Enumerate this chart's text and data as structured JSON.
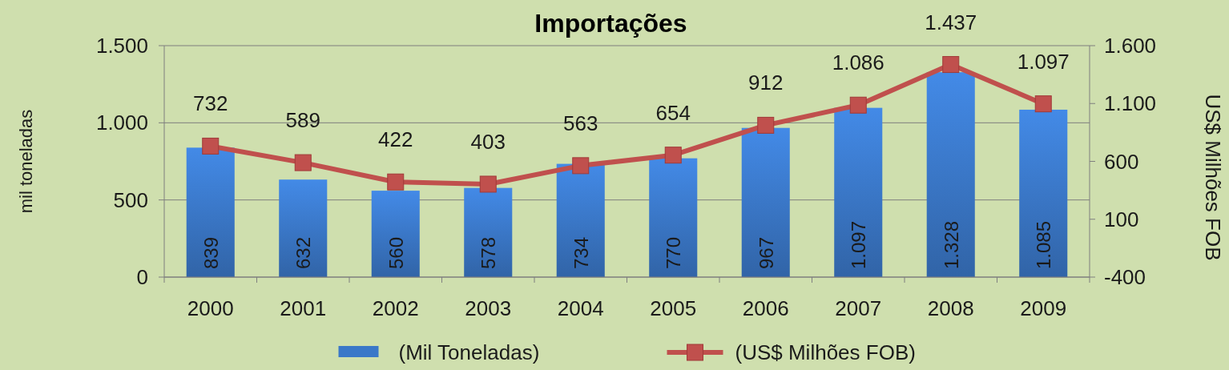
{
  "chart_data": {
    "type": "bar",
    "title": "Importações",
    "ylabel": "mil toneladas",
    "y2label": "US$ Milhões FOB",
    "categories": [
      "2000",
      "2001",
      "2002",
      "2003",
      "2004",
      "2005",
      "2006",
      "2007",
      "2008",
      "2009"
    ],
    "series": [
      {
        "name": "(Mil Toneladas)",
        "color": "#3a78c8",
        "values": [
          839,
          632,
          560,
          578,
          734,
          770,
          967,
          1097,
          1328,
          1085
        ],
        "value_labels": [
          "839",
          "632",
          "560",
          "578",
          "734",
          "770",
          "967",
          "1.097",
          "1.328",
          "1.085"
        ]
      },
      {
        "name": "(US$ Milhões FOB)",
        "type": "line",
        "axis": "y2",
        "color": "#c0504d",
        "marker": "square",
        "values": [
          732,
          589,
          422,
          403,
          563,
          654,
          912,
          1086,
          1437,
          1097
        ],
        "value_labels": [
          "732",
          "589",
          "422",
          "403",
          "563",
          "654",
          "912",
          "1.086",
          "1.437",
          "1.097"
        ]
      }
    ],
    "ylim": [
      0,
      1500
    ],
    "yticks": [
      0,
      {
        "value": 500,
        "label": "500"
      },
      {
        "value": 1000,
        "label": "1.000"
      },
      {
        "value": 1500,
        "label": "1.500"
      }
    ],
    "y2lim": [
      -400,
      1600
    ],
    "y2ticks": [
      {
        "value": -400,
        "label": "-400"
      },
      100,
      600,
      {
        "value": 1100,
        "label": "1.100"
      },
      {
        "value": 1600,
        "label": "1.600"
      }
    ],
    "grid": "y",
    "legend": "bottom"
  }
}
